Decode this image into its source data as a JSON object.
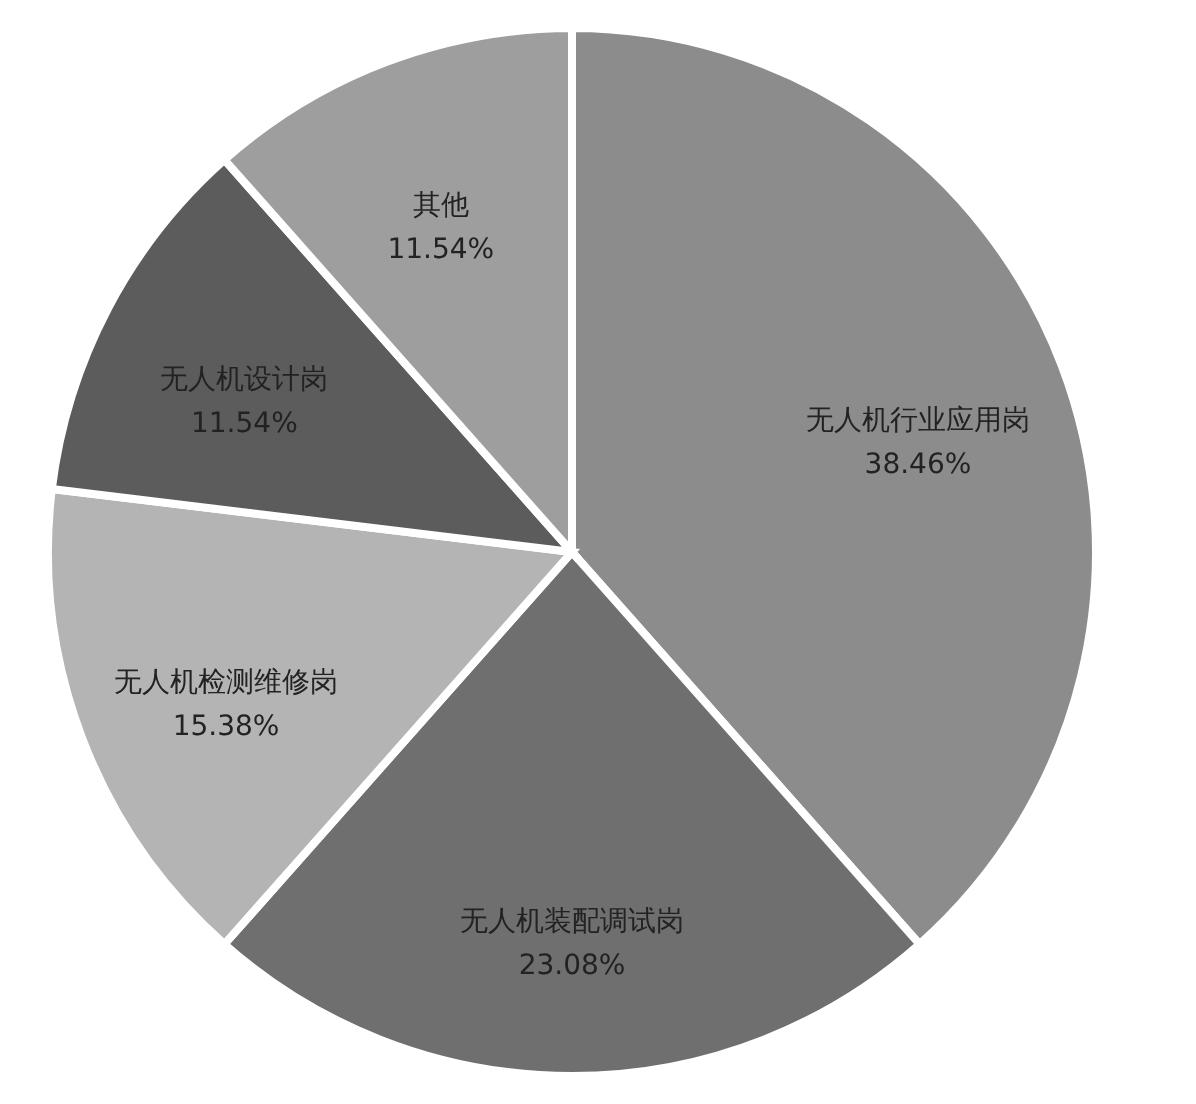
{
  "chart_data": {
    "type": "pie",
    "categories": [
      "无人机行业应用岗",
      "无人机装配调试岗",
      "无人机检测维修岗",
      "无人机设计岗",
      "其他"
    ],
    "values": [
      38.46,
      23.08,
      15.38,
      11.54,
      11.54
    ],
    "value_labels": [
      "38.46%",
      "23.08%",
      "15.38%",
      "11.54%",
      "11.54%"
    ],
    "colors": [
      "#8c8c8c",
      "#6f6f6f",
      "#b4b4b4",
      "#5c5c5c",
      "#9e9e9e"
    ],
    "legend": false
  }
}
